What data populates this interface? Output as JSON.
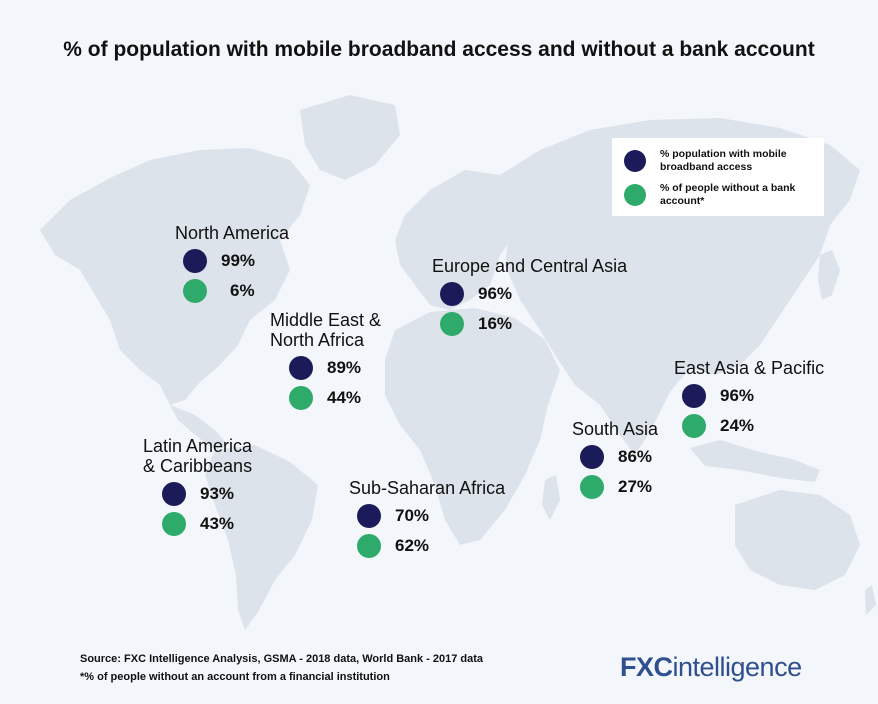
{
  "title": "% of population with mobile broadband access and without a bank account",
  "colors": {
    "broadband": "#1b1b5a",
    "unbanked": "#2eaa6a",
    "land": "#dde3ea",
    "background": "#f3f6fa",
    "logo": "#2f4f8f"
  },
  "legend": {
    "broadband_label": "% population with mobile broadband access",
    "unbanked_label": "% of people without a bank account*"
  },
  "regions": [
    {
      "key": "north-america",
      "name_line1": "North America",
      "name_line2": "",
      "broadband": "99%",
      "unbanked": "6%"
    },
    {
      "key": "europe-central-asia",
      "name_line1": "Europe and Central Asia",
      "name_line2": "",
      "broadband": "96%",
      "unbanked": "16%"
    },
    {
      "key": "middle-east-north-africa",
      "name_line1": "Middle East &",
      "name_line2": "North Africa",
      "broadband": "89%",
      "unbanked": "44%"
    },
    {
      "key": "east-asia-pacific",
      "name_line1": "East Asia & Pacific",
      "name_line2": "",
      "broadband": "96%",
      "unbanked": "24%"
    },
    {
      "key": "south-asia",
      "name_line1": "South Asia",
      "name_line2": "",
      "broadband": "86%",
      "unbanked": "27%"
    },
    {
      "key": "latin-america-caribbeans",
      "name_line1": "Latin America",
      "name_line2": "& Caribbeans",
      "broadband": "93%",
      "unbanked": "43%"
    },
    {
      "key": "sub-saharan-africa",
      "name_line1": "Sub-Saharan Africa",
      "name_line2": "",
      "broadband": "70%",
      "unbanked": "62%"
    }
  ],
  "source": {
    "line1": "Source: FXC Intelligence Analysis, GSMA - 2018 data, World Bank - 2017 data",
    "line2": "*% of people without an account from a financial institution"
  },
  "logo": {
    "part1": "FXC",
    "part2": "intelligence"
  }
}
